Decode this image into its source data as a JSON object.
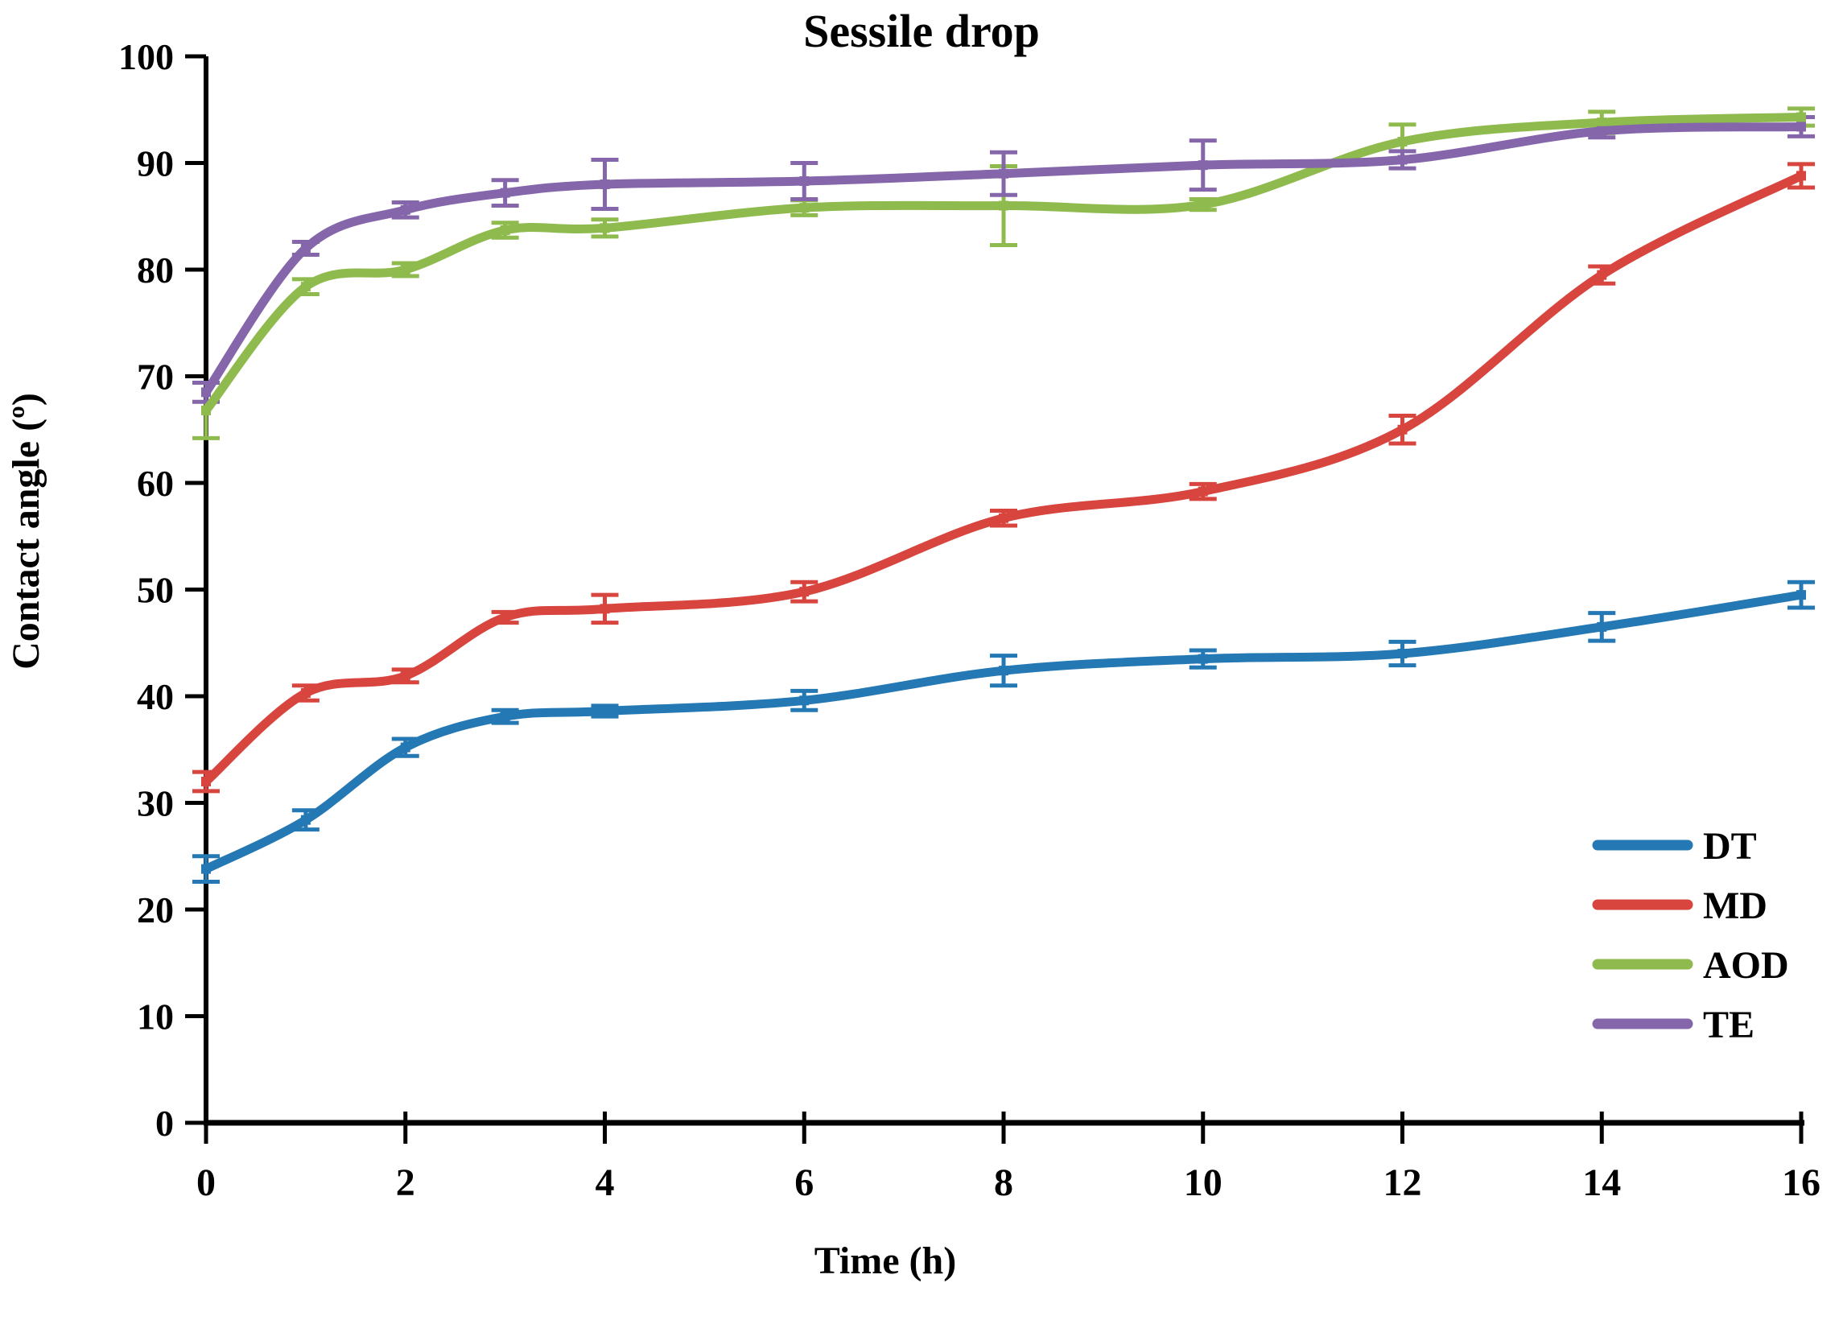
{
  "title": "Sessile drop",
  "axes": {
    "y_label": "Contact angle (º)",
    "x_label": "Time (h)",
    "y_ticks": [
      "0",
      "10",
      "20",
      "30",
      "40",
      "50",
      "60",
      "70",
      "80",
      "90",
      "100"
    ],
    "x_ticks": [
      "0",
      "2",
      "4",
      "6",
      "8",
      "10",
      "12",
      "14",
      "16"
    ]
  },
  "legend": {
    "items": [
      {
        "label": "DT",
        "color": "#2478b4"
      },
      {
        "label": "MD",
        "color": "#d8453f"
      },
      {
        "label": "AOD",
        "color": "#8fba4d"
      },
      {
        "label": "TE",
        "color": "#8566aa"
      }
    ]
  },
  "chart_data": {
    "type": "line",
    "title": "Sessile drop",
    "xlabel": "Time (h)",
    "ylabel": "Contact angle (º)",
    "x": [
      0,
      1,
      2,
      3,
      4,
      6,
      8,
      10,
      12,
      14,
      16
    ],
    "series": [
      {
        "name": "DT",
        "color": "#2478b4",
        "values": [
          23.8,
          28.4,
          35.2,
          38.1,
          38.6,
          39.6,
          42.4,
          43.5,
          44.0,
          46.5,
          49.5
        ],
        "errors": [
          1.2,
          0.9,
          0.8,
          0.6,
          0.5,
          0.9,
          1.4,
          0.8,
          1.1,
          1.3,
          1.2
        ]
      },
      {
        "name": "MD",
        "color": "#d8453f",
        "values": [
          32.0,
          40.3,
          41.9,
          47.4,
          48.2,
          49.8,
          56.7,
          59.2,
          65.0,
          79.5,
          88.8
        ],
        "errors": [
          0.9,
          0.7,
          0.6,
          0.5,
          1.3,
          0.9,
          0.7,
          0.7,
          1.3,
          0.8,
          1.1
        ]
      },
      {
        "name": "AOD",
        "color": "#8fba4d",
        "values": [
          66.8,
          78.4,
          80.0,
          83.7,
          83.9,
          85.8,
          86.0,
          86.1,
          92.0,
          93.8,
          94.3
        ],
        "errors": [
          2.6,
          0.7,
          0.6,
          0.7,
          0.8,
          0.7,
          3.7,
          0.5,
          1.6,
          1.0,
          0.8
        ]
      },
      {
        "name": "TE",
        "color": "#8566aa",
        "values": [
          68.5,
          82.0,
          85.6,
          87.2,
          88.0,
          88.3,
          89.0,
          89.8,
          90.3,
          93.0,
          93.4
        ],
        "errors": [
          0.9,
          0.6,
          0.7,
          1.2,
          2.3,
          1.7,
          2.0,
          2.3,
          0.8,
          0.6,
          0.9
        ]
      }
    ],
    "xlim": [
      0,
      16
    ],
    "ylim": [
      0,
      100
    ],
    "x_tick_step": 2,
    "y_tick_step": 10,
    "grid": false,
    "legend_position": "inside-right",
    "smoothed": true,
    "error_bars": true,
    "markers": "square"
  }
}
